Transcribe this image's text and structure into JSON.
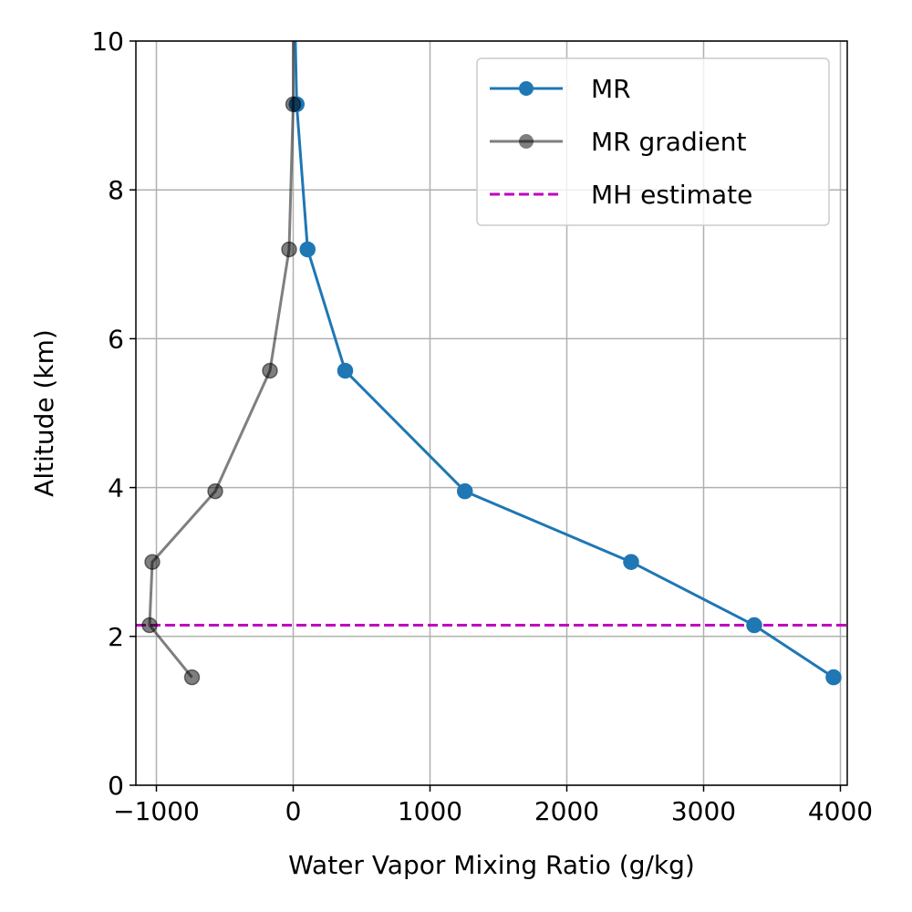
{
  "chart_data": {
    "type": "line",
    "title": "",
    "xlabel": "Water Vapor Mixing Ratio (g/kg)",
    "ylabel": "Altitude (km)",
    "xlim": [
      -1150,
      4050
    ],
    "ylim": [
      0,
      10
    ],
    "x_ticks": [
      -1000,
      0,
      1000,
      2000,
      3000,
      4000
    ],
    "x_tick_labels": [
      "−1000",
      "0",
      "1000",
      "2000",
      "3000",
      "4000"
    ],
    "y_ticks": [
      0,
      2,
      4,
      6,
      8,
      10
    ],
    "y_tick_labels": [
      "0",
      "2",
      "4",
      "6",
      "8",
      "10"
    ],
    "grid": true,
    "legend_position": "top-right",
    "series": [
      {
        "name": "MR",
        "color": "#1f77b4",
        "marker": "circle",
        "points": [
          {
            "x": 3950,
            "y": 1.45
          },
          {
            "x": 3370,
            "y": 2.15
          },
          {
            "x": 2470,
            "y": 3.0
          },
          {
            "x": 1255,
            "y": 3.95
          },
          {
            "x": 380,
            "y": 5.57
          },
          {
            "x": 105,
            "y": 7.2
          },
          {
            "x": 25,
            "y": 9.15
          },
          {
            "x": 10,
            "y": 10.5
          }
        ]
      },
      {
        "name": "MR gradient",
        "color": "#000000",
        "opacity": 0.5,
        "marker": "circle",
        "points": [
          {
            "x": -740,
            "y": 1.45
          },
          {
            "x": -1050,
            "y": 2.15
          },
          {
            "x": -1030,
            "y": 3.0
          },
          {
            "x": -570,
            "y": 3.95
          },
          {
            "x": -170,
            "y": 5.57
          },
          {
            "x": -30,
            "y": 7.2
          },
          {
            "x": 0,
            "y": 9.15
          },
          {
            "x": 0,
            "y": 10.5
          }
        ]
      }
    ],
    "reference_lines": [
      {
        "name": "MH estimate",
        "orientation": "horizontal",
        "y": 2.15,
        "color": "#bf00bf",
        "style": "dashed"
      }
    ]
  }
}
